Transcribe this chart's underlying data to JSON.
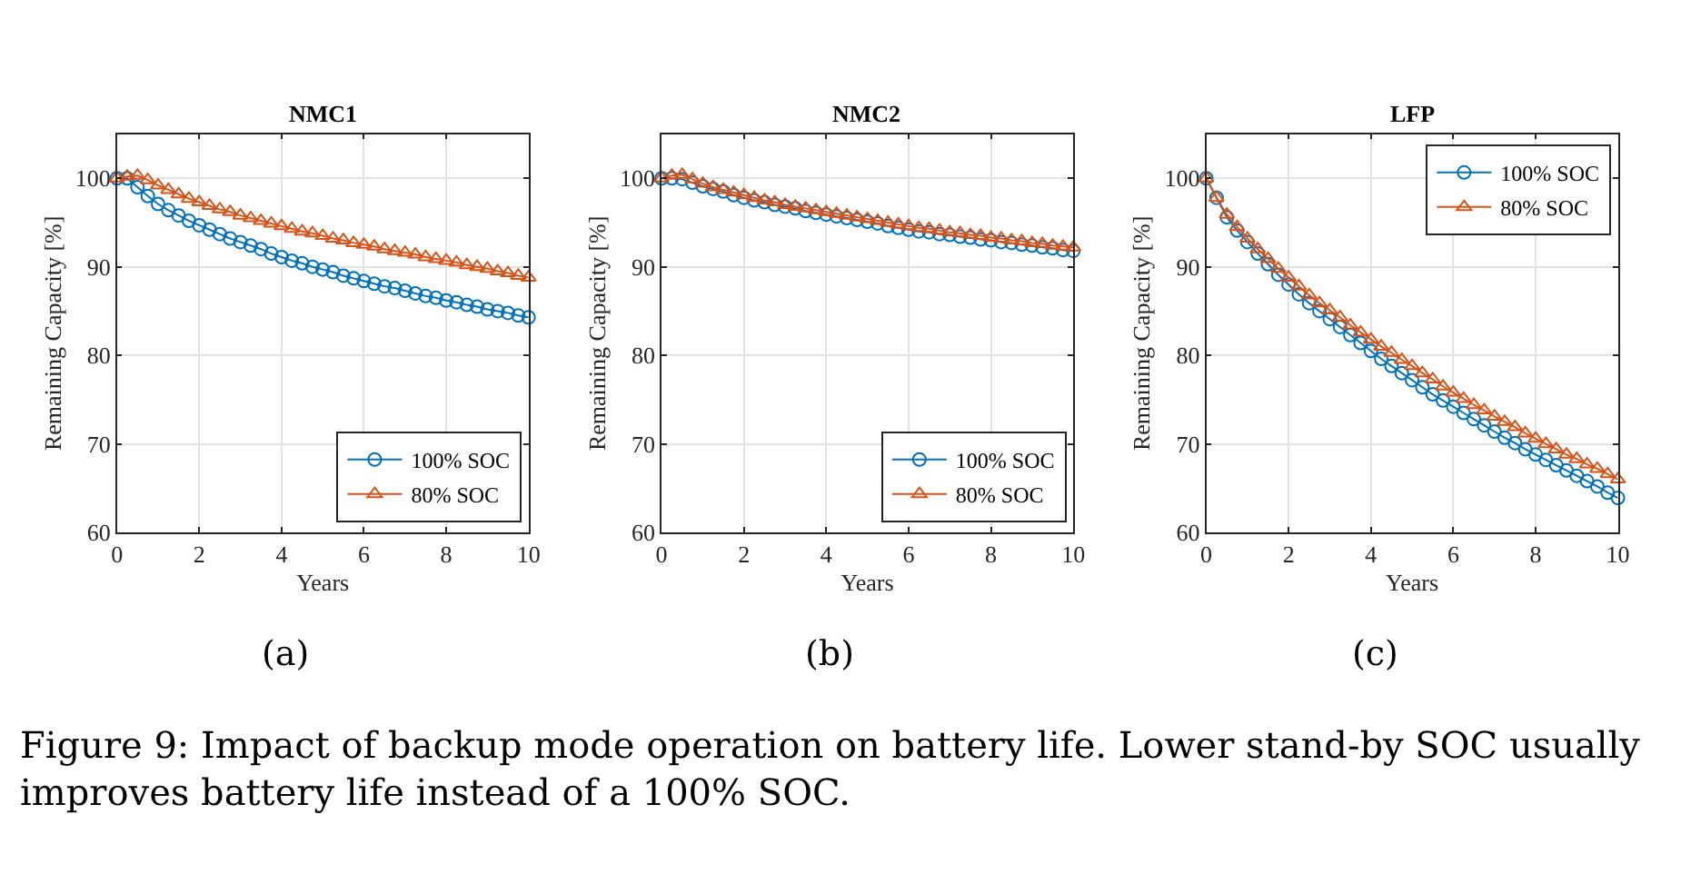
{
  "chart_data": [
    {
      "type": "line",
      "title": "NMC1",
      "xlabel": "Years",
      "ylabel": "Remaining Capacity [%]",
      "x": [
        0,
        0.25,
        0.5,
        0.75,
        1,
        1.25,
        1.5,
        1.75,
        2,
        2.25,
        2.5,
        2.75,
        3,
        3.25,
        3.5,
        3.75,
        4,
        4.25,
        4.5,
        4.75,
        5,
        5.25,
        5.5,
        5.75,
        6,
        6.25,
        6.5,
        6.75,
        7,
        7.25,
        7.5,
        7.75,
        8,
        8.25,
        8.5,
        8.75,
        9,
        9.25,
        9.5,
        9.75,
        10
      ],
      "series": [
        {
          "name": "100% SOC",
          "color": "#0072bd",
          "marker": "circle",
          "values": [
            100.0,
            100.0,
            99.0,
            98.0,
            97.1,
            96.4,
            95.8,
            95.2,
            94.7,
            94.2,
            93.7,
            93.2,
            92.8,
            92.4,
            92.0,
            91.5,
            91.1,
            90.7,
            90.4,
            90.0,
            89.7,
            89.4,
            89.0,
            88.7,
            88.4,
            88.1,
            87.8,
            87.6,
            87.3,
            87.0,
            86.7,
            86.5,
            86.2,
            86.0,
            85.7,
            85.5,
            85.2,
            85.0,
            84.8,
            84.5,
            84.3
          ]
        },
        {
          "name": "80% SOC",
          "color": "#d95319",
          "marker": "triangle",
          "values": [
            100.0,
            100.2,
            100.3,
            99.8,
            99.2,
            98.7,
            98.2,
            97.7,
            97.3,
            96.9,
            96.5,
            96.2,
            95.8,
            95.5,
            95.2,
            94.9,
            94.6,
            94.3,
            94.0,
            93.8,
            93.5,
            93.2,
            93.0,
            92.7,
            92.5,
            92.3,
            92.0,
            91.8,
            91.6,
            91.4,
            91.1,
            90.9,
            90.7,
            90.5,
            90.2,
            90.0,
            89.8,
            89.5,
            89.3,
            89.0,
            88.8
          ]
        }
      ],
      "xlim": [
        0,
        10
      ],
      "ylim": [
        60,
        105
      ],
      "xticks": [
        0,
        2,
        4,
        6,
        8,
        10
      ],
      "yticks": [
        60,
        70,
        80,
        90,
        100
      ],
      "grid": true,
      "legend": "bottom right",
      "line_style": "solid",
      "annotations": [
        "(a)"
      ]
    },
    {
      "type": "line",
      "title": "NMC2",
      "xlabel": "Years",
      "ylabel": "Remaining Capacity [%]",
      "x": [
        0,
        0.25,
        0.5,
        0.75,
        1,
        1.25,
        1.5,
        1.75,
        2,
        2.25,
        2.5,
        2.75,
        3,
        3.25,
        3.5,
        3.75,
        4,
        4.25,
        4.5,
        4.75,
        5,
        5.25,
        5.5,
        5.75,
        6,
        6.25,
        6.5,
        6.75,
        7,
        7.25,
        7.5,
        7.75,
        8,
        8.25,
        8.5,
        8.75,
        9,
        9.25,
        9.5,
        9.75,
        10
      ],
      "series": [
        {
          "name": "100% SOC",
          "color": "#0072bd",
          "marker": "circle",
          "values": [
            100.0,
            100.0,
            99.9,
            99.5,
            99.1,
            98.8,
            98.5,
            98.1,
            97.8,
            97.5,
            97.3,
            97.0,
            96.8,
            96.6,
            96.3,
            96.1,
            95.9,
            95.7,
            95.5,
            95.3,
            95.1,
            94.9,
            94.6,
            94.4,
            94.2,
            94.0,
            93.9,
            93.7,
            93.6,
            93.4,
            93.3,
            93.1,
            93.0,
            92.8,
            92.7,
            92.5,
            92.4,
            92.2,
            92.1,
            91.9,
            91.8
          ]
        },
        {
          "name": "80% SOC",
          "color": "#d95319",
          "marker": "triangle",
          "values": [
            100.0,
            100.3,
            100.4,
            99.9,
            99.4,
            99.0,
            98.7,
            98.4,
            98.1,
            97.8,
            97.5,
            97.3,
            97.0,
            96.8,
            96.6,
            96.4,
            96.2,
            96.0,
            95.8,
            95.6,
            95.4,
            95.2,
            95.0,
            94.8,
            94.6,
            94.4,
            94.3,
            94.1,
            93.9,
            93.8,
            93.6,
            93.5,
            93.3,
            93.2,
            93.0,
            92.9,
            92.7,
            92.6,
            92.4,
            92.3,
            92.2
          ]
        }
      ],
      "xlim": [
        0,
        10
      ],
      "ylim": [
        60,
        105
      ],
      "xticks": [
        0,
        2,
        4,
        6,
        8,
        10
      ],
      "yticks": [
        60,
        70,
        80,
        90,
        100
      ],
      "grid": true,
      "legend": "bottom right",
      "line_style": "solid",
      "annotations": [
        "(b)"
      ]
    },
    {
      "type": "line",
      "title": "LFP",
      "xlabel": "Years",
      "ylabel": "Remaining Capacity [%]",
      "x": [
        0,
        0.25,
        0.5,
        0.75,
        1,
        1.25,
        1.5,
        1.75,
        2,
        2.25,
        2.5,
        2.75,
        3,
        3.25,
        3.5,
        3.75,
        4,
        4.25,
        4.5,
        4.75,
        5,
        5.25,
        5.5,
        5.75,
        6,
        6.25,
        6.5,
        6.75,
        7,
        7.25,
        7.5,
        7.75,
        8,
        8.25,
        8.5,
        8.75,
        9,
        9.25,
        9.5,
        9.75,
        10
      ],
      "series": [
        {
          "name": "100% SOC",
          "color": "#0072bd",
          "marker": "circle",
          "values": [
            100.0,
            97.8,
            95.6,
            94.1,
            92.8,
            91.5,
            90.3,
            89.1,
            88.0,
            86.9,
            85.9,
            85.0,
            84.1,
            83.2,
            82.3,
            81.4,
            80.5,
            79.6,
            78.8,
            78.0,
            77.2,
            76.4,
            75.6,
            74.9,
            74.2,
            73.5,
            72.8,
            72.1,
            71.4,
            70.7,
            70.1,
            69.4,
            68.8,
            68.2,
            67.6,
            67.0,
            66.4,
            65.8,
            65.2,
            64.5,
            63.9
          ]
        },
        {
          "name": "80% SOC",
          "color": "#d95319",
          "marker": "triangle",
          "values": [
            100.0,
            97.8,
            95.9,
            94.5,
            93.2,
            92.0,
            90.9,
            89.8,
            88.8,
            87.8,
            86.8,
            85.9,
            85.1,
            84.3,
            83.4,
            82.6,
            81.8,
            81.0,
            80.3,
            79.5,
            78.8,
            78.0,
            77.3,
            76.5,
            75.8,
            75.1,
            74.4,
            73.8,
            73.1,
            72.5,
            71.9,
            71.2,
            70.6,
            70.0,
            69.4,
            68.8,
            68.3,
            67.7,
            67.2,
            66.6,
            66.0
          ]
        }
      ],
      "xlim": [
        0,
        10
      ],
      "ylim": [
        60,
        105
      ],
      "xticks": [
        0,
        2,
        4,
        6,
        8,
        10
      ],
      "yticks": [
        60,
        70,
        80,
        90,
        100
      ],
      "grid": true,
      "legend": "top right",
      "line_style": "solid",
      "annotations": [
        "(c)",
        "Figure 9: Impact of backup mode operation on battery life. Lower stand-by SOC usually improves battery life instead of a 100% SOC."
      ]
    }
  ]
}
